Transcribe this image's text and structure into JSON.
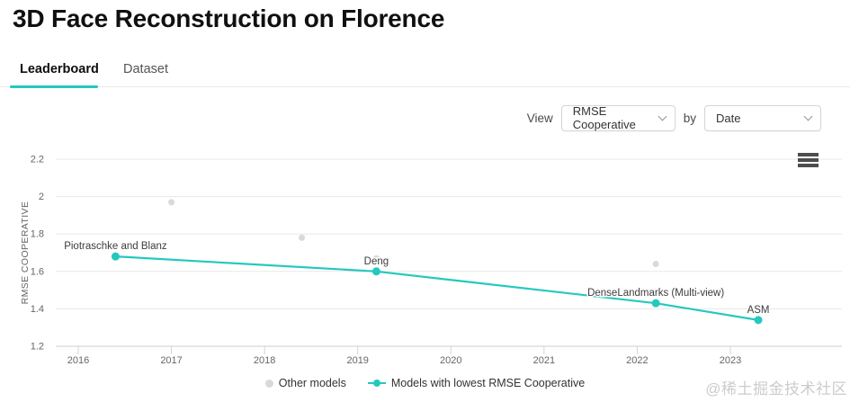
{
  "theme": {
    "accent": "#25c8be",
    "grid": "#e8e8e8",
    "axis": "#cccccc",
    "muted_text": "#666666"
  },
  "page": {
    "title": "3D Face Reconstruction on Florence"
  },
  "tabs": {
    "leaderboard": "Leaderboard",
    "dataset": "Dataset"
  },
  "controls": {
    "view_label": "View",
    "metric_value": "RMSE Cooperative",
    "by_label": "by",
    "group_value": "Date"
  },
  "watermark": "@稀土掘金技术社区",
  "chart_data": {
    "type": "line",
    "title": "",
    "xlabel": "Date",
    "ylabel": "RMSE COOPERATIVE",
    "ylim": [
      1.2,
      2.2
    ],
    "xlim": [
      2015.76,
      2024.2
    ],
    "yticks": [
      2.2,
      2,
      1.8,
      1.6,
      1.4,
      1.2
    ],
    "ytick_labels": [
      "2.2",
      "2",
      "1.8",
      "1.6",
      "1.4",
      "1.2"
    ],
    "xticks": [
      2016,
      2017,
      2018,
      2019,
      2020,
      2021,
      2022,
      2023
    ],
    "grid": true,
    "legend_position": "bottom",
    "series": [
      {
        "name": "Models with lowest RMSE Cooperative",
        "color": "#25c8be",
        "marker": "line-circle",
        "points": [
          {
            "x": 2016.4,
            "y": 1.68,
            "label": "Piotraschke and Blanz"
          },
          {
            "x": 2019.2,
            "y": 1.6,
            "label": "Deng"
          },
          {
            "x": 2022.2,
            "y": 1.43,
            "label": "DenseLandmarks (Multi-view)"
          },
          {
            "x": 2023.3,
            "y": 1.34,
            "label": "ASM"
          }
        ]
      },
      {
        "name": "Other models",
        "color": "#d9d9d9",
        "marker": "circle",
        "points": [
          {
            "x": 2017.0,
            "y": 1.97
          },
          {
            "x": 2018.4,
            "y": 1.78
          },
          {
            "x": 2019.2,
            "y": 1.67
          },
          {
            "x": 2022.2,
            "y": 1.64
          }
        ]
      }
    ]
  }
}
